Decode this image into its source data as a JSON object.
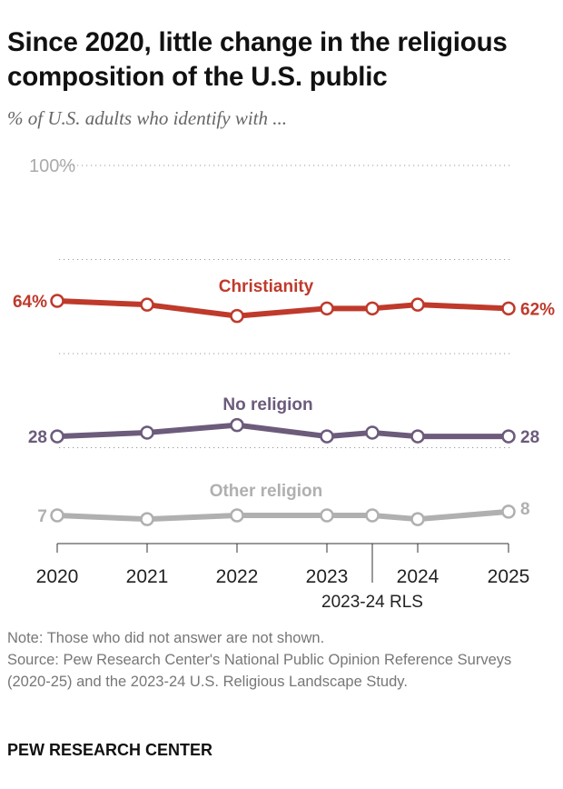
{
  "title": "Since 2020, little change in the religious composition of the U.S. public",
  "subtitle": "% of U.S. adults who identify with ...",
  "chart_data": {
    "type": "line",
    "x": [
      "2020",
      "2021",
      "2022",
      "2023",
      "2023-24 RLS",
      "2024",
      "2025"
    ],
    "x_tick_labels": [
      "2020",
      "2021",
      "2022",
      "2023",
      "2024",
      "2025"
    ],
    "x_annotation": "2023-24 RLS",
    "ylim": [
      0,
      100
    ],
    "y_tick_label": "100%",
    "grid": true,
    "series": [
      {
        "name": "Christianity",
        "color": "#bf3a2b",
        "values": [
          64,
          63,
          60,
          62,
          62,
          63,
          62
        ],
        "start_label": "64%",
        "end_label": "62%"
      },
      {
        "name": "No religion",
        "color": "#6c5b7b",
        "values": [
          28,
          29,
          31,
          28,
          29,
          28,
          28
        ],
        "start_label": "28",
        "end_label": "28"
      },
      {
        "name": "Other religion",
        "color": "#b0b0b0",
        "values": [
          7,
          6,
          7,
          7,
          7,
          6,
          8
        ],
        "start_label": "7",
        "end_label": "8"
      }
    ]
  },
  "note": "Note: Those who did not answer are not shown.",
  "source": "Source: Pew Research Center's National Public Opinion Reference Surveys (2020-25) and the 2023-24 U.S. Religious Landscape Study.",
  "brand": "PEW RESEARCH CENTER"
}
